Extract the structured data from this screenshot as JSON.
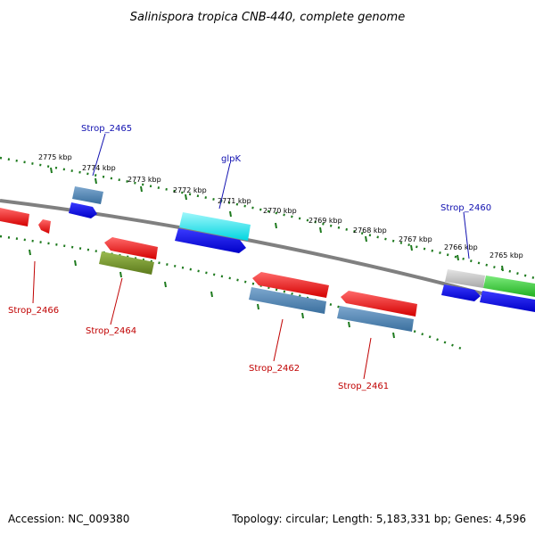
{
  "title": "Salinispora tropica CNB-440, complete genome",
  "footer": {
    "accession": "Accession: NC_009380",
    "summary": "Topology: circular; Length: 5,183,331 bp; Genes: 4,596"
  },
  "ruler_labels": [
    "2775 kbp",
    "2774 kbp",
    "2773 kbp",
    "2772 kbp",
    "2771 kbp",
    "2770 kbp",
    "2769 kbp",
    "2768 kbp",
    "2767 kbp",
    "2766 kbp",
    "2765 kbp"
  ],
  "gene_labels": {
    "strop_2465": "Strop_2465",
    "glpk": "glpK",
    "strop_2460": "Strop_2460",
    "strop_2466": "Strop_2466",
    "strop_2464": "Strop_2464",
    "strop_2462": "Strop_2462",
    "strop_2461": "Strop_2461"
  },
  "colors": {
    "backbone": "#808080",
    "ruler": "#1e7a1e",
    "forward_label": "#1010b0",
    "reverse_label": "#c00000",
    "red": "#ff0000",
    "blue": "#0000ee",
    "steel": "#4682b4",
    "cyan": "#00e5ee",
    "olive": "#6b8e23",
    "green": "#33cc33",
    "grey": "#c0c0c0"
  }
}
